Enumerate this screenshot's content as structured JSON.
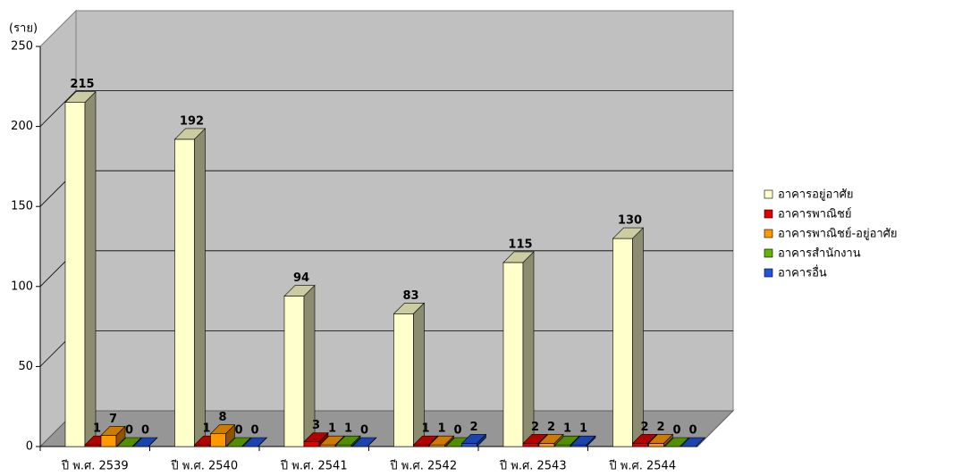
{
  "chart_data": {
    "type": "bar3d",
    "y_label": "(ราย)",
    "categories": [
      "ปี พ.ศ. 2539",
      "ปี พ.ศ. 2540",
      "ปี พ.ศ. 2541",
      "ปี พ.ศ. 2542",
      "ปี พ.ศ. 2543",
      "ปี พ.ศ. 2544"
    ],
    "series": [
      {
        "name": "อาคารอยู่อาศัย",
        "color": "#ffffcc",
        "values": [
          215,
          192,
          94,
          83,
          115,
          130
        ]
      },
      {
        "name": "อาคารพาณิชย์",
        "color": "#e00000",
        "values": [
          1,
          1,
          3,
          1,
          2,
          2
        ]
      },
      {
        "name": "อาคารพาณิชย์-อยู่อาศัย",
        "color": "#ff9900",
        "values": [
          7,
          8,
          1,
          1,
          2,
          2
        ]
      },
      {
        "name": "อาคารสำนักงาน",
        "color": "#66b300",
        "values": [
          0,
          0,
          1,
          0,
          1,
          0
        ]
      },
      {
        "name": "อาคารอื่น",
        "color": "#2255dd",
        "values": [
          0,
          0,
          0,
          2,
          1,
          0
        ]
      }
    ],
    "ylim": [
      0,
      250
    ],
    "yticks": [
      0,
      50,
      100,
      150,
      200,
      250
    ],
    "grid": true,
    "legend": "right"
  }
}
